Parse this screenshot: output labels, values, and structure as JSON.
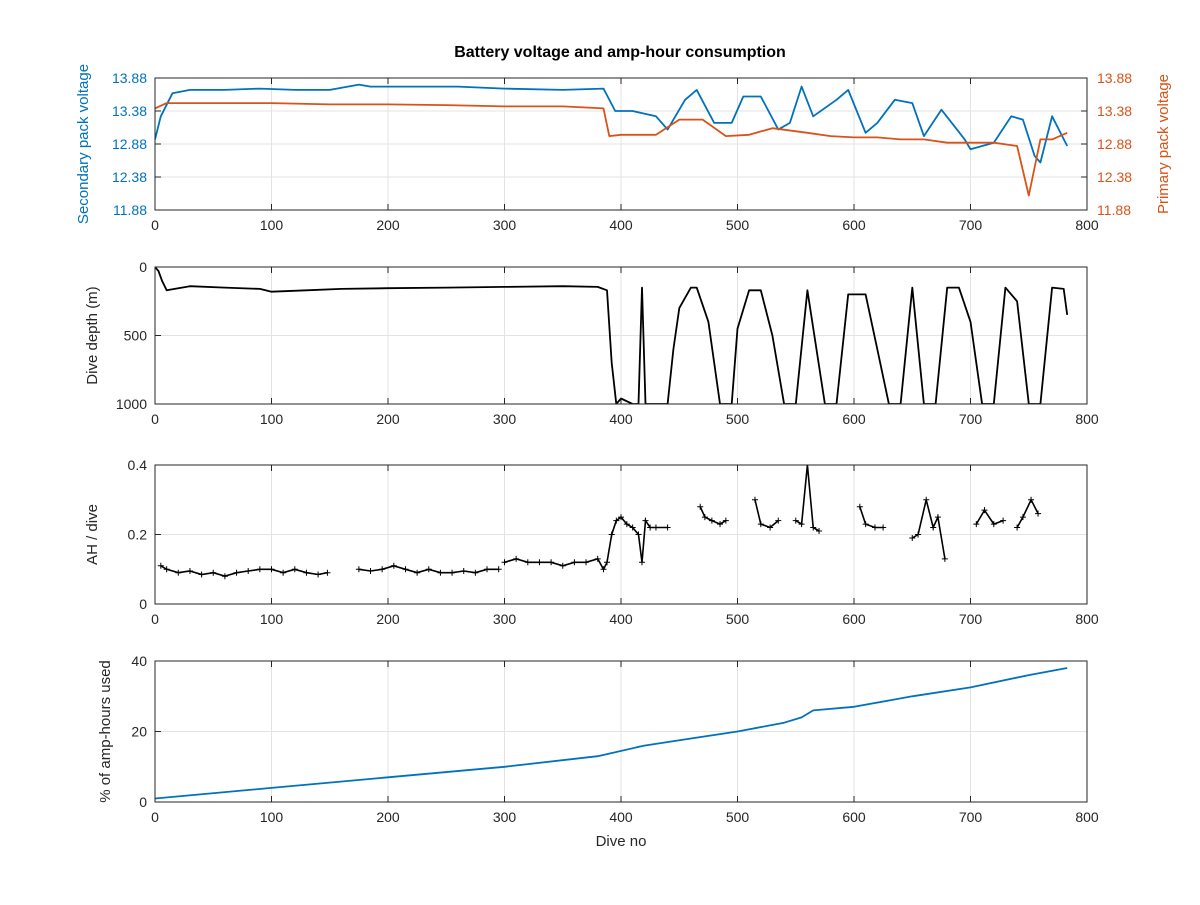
{
  "figure": {
    "title": "Battery voltage and amp-hour consumption",
    "colors": {
      "blue": "#0072bd",
      "orange": "#d95319",
      "black": "#000000",
      "grid": "#e3e3e3",
      "axis": "#262626"
    }
  },
  "chart_data": [
    {
      "type": "line",
      "title": "Battery voltage and amp-hour consumption",
      "xlabel": "",
      "ylabel": "Secondary pack voltage",
      "ylabel_right": "Primary pack voltage",
      "xlim": [
        0,
        800
      ],
      "ylim": [
        11.88,
        13.88
      ],
      "ylim_right": [
        11.88,
        13.88
      ],
      "xticks": [
        0,
        100,
        200,
        300,
        400,
        500,
        600,
        700,
        800
      ],
      "yticks": [
        "11.88",
        "12.38",
        "12.88",
        "13.38",
        "13.88"
      ],
      "yticks_right": [
        "11.88",
        "12.38",
        "12.88",
        "13.38",
        "13.88"
      ],
      "grid": true,
      "series": [
        {
          "axis": "left",
          "color": "#0072bd",
          "x": [
            0,
            5,
            15,
            30,
            60,
            90,
            120,
            150,
            175,
            185,
            220,
            260,
            300,
            350,
            385,
            395,
            410,
            430,
            440,
            455,
            465,
            480,
            495,
            505,
            520,
            535,
            545,
            555,
            565,
            585,
            595,
            610,
            620,
            635,
            650,
            660,
            675,
            695,
            700,
            720,
            735,
            745,
            755,
            760,
            770,
            783
          ],
          "y": [
            12.95,
            13.3,
            13.65,
            13.7,
            13.7,
            13.72,
            13.7,
            13.7,
            13.78,
            13.75,
            13.75,
            13.75,
            13.72,
            13.7,
            13.72,
            13.38,
            13.38,
            13.3,
            13.1,
            13.55,
            13.7,
            13.2,
            13.2,
            13.6,
            13.6,
            13.1,
            13.2,
            13.75,
            13.3,
            13.55,
            13.7,
            13.05,
            13.2,
            13.55,
            13.5,
            13.0,
            13.4,
            12.95,
            12.8,
            12.9,
            13.3,
            13.25,
            12.7,
            12.6,
            13.3,
            12.85
          ]
        },
        {
          "axis": "right",
          "color": "#d95319",
          "x": [
            0,
            10,
            30,
            60,
            100,
            150,
            200,
            250,
            300,
            350,
            385,
            390,
            400,
            430,
            450,
            470,
            490,
            510,
            530,
            560,
            580,
            600,
            620,
            640,
            660,
            680,
            700,
            720,
            740,
            750,
            760,
            770,
            783
          ],
          "y": [
            13.42,
            13.5,
            13.5,
            13.5,
            13.5,
            13.48,
            13.48,
            13.47,
            13.45,
            13.45,
            13.42,
            13.0,
            13.02,
            13.02,
            13.25,
            13.25,
            13.0,
            13.02,
            13.12,
            13.05,
            13.0,
            12.98,
            12.98,
            12.95,
            12.95,
            12.9,
            12.9,
            12.9,
            12.85,
            12.1,
            12.95,
            12.95,
            13.05
          ]
        }
      ]
    },
    {
      "type": "line",
      "xlabel": "",
      "ylabel": "Dive depth (m)",
      "xlim": [
        0,
        800
      ],
      "ylim": [
        0,
        1000
      ],
      "y_reversed": true,
      "xticks": [
        0,
        100,
        200,
        300,
        400,
        500,
        600,
        700,
        800
      ],
      "yticks": [
        "0",
        "500",
        "1000"
      ],
      "grid": true,
      "series": [
        {
          "color": "#000000",
          "x": [
            0,
            3,
            6,
            10,
            30,
            60,
            90,
            100,
            130,
            160,
            200,
            250,
            300,
            350,
            380,
            388,
            392,
            396,
            400,
            410,
            415,
            418,
            421,
            430,
            440,
            445,
            450,
            460,
            465,
            475,
            485,
            495,
            500,
            510,
            520,
            530,
            540,
            550,
            560,
            575,
            585,
            595,
            610,
            620,
            630,
            640,
            650,
            660,
            670,
            680,
            690,
            700,
            710,
            720,
            730,
            740,
            750,
            760,
            770,
            780,
            783
          ],
          "y": [
            0,
            30,
            100,
            170,
            140,
            150,
            160,
            180,
            170,
            160,
            155,
            150,
            145,
            140,
            145,
            170,
            700,
            1000,
            960,
            1000,
            1000,
            150,
            1000,
            1000,
            1000,
            600,
            300,
            150,
            150,
            400,
            1000,
            1000,
            450,
            170,
            170,
            500,
            1000,
            1000,
            170,
            1000,
            1000,
            200,
            200,
            600,
            1000,
            1000,
            150,
            1000,
            1000,
            150,
            150,
            400,
            1000,
            1000,
            150,
            250,
            1000,
            1000,
            150,
            160,
            350
          ]
        }
      ]
    },
    {
      "type": "scatter",
      "xlabel": "",
      "ylabel": "AH / dive",
      "xlim": [
        0,
        800
      ],
      "ylim": [
        0,
        0.4
      ],
      "xticks": [
        0,
        100,
        200,
        300,
        400,
        500,
        600,
        700,
        800
      ],
      "yticks": [
        "0",
        "0.2",
        "0.4"
      ],
      "grid": true,
      "series": [
        {
          "color": "#000000",
          "segments": [
            {
              "x": [
                5,
                10,
                20,
                30,
                40,
                50,
                60,
                70,
                80,
                90,
                100,
                110,
                120,
                130,
                140,
                148
              ],
              "y": [
                0.11,
                0.1,
                0.09,
                0.095,
                0.085,
                0.09,
                0.08,
                0.09,
                0.095,
                0.1,
                0.1,
                0.09,
                0.1,
                0.09,
                0.085,
                0.09
              ]
            },
            {
              "x": [
                175,
                185,
                195,
                205,
                215,
                225,
                235,
                245,
                255,
                265,
                275,
                285,
                295
              ],
              "y": [
                0.1,
                0.095,
                0.1,
                0.11,
                0.1,
                0.09,
                0.1,
                0.09,
                0.09,
                0.095,
                0.09,
                0.1,
                0.1
              ]
            },
            {
              "x": [
                300,
                310,
                320,
                330,
                340,
                350,
                360,
                370,
                380,
                385,
                388,
                392,
                396,
                400,
                405,
                410,
                415,
                418,
                421,
                425,
                430,
                440
              ],
              "y": [
                0.12,
                0.13,
                0.12,
                0.12,
                0.12,
                0.11,
                0.12,
                0.12,
                0.13,
                0.1,
                0.12,
                0.2,
                0.24,
                0.25,
                0.23,
                0.22,
                0.2,
                0.12,
                0.24,
                0.22,
                0.22,
                0.22
              ]
            },
            {
              "x": [
                468,
                472,
                478,
                485,
                490
              ],
              "y": [
                0.28,
                0.25,
                0.24,
                0.23,
                0.24
              ]
            },
            {
              "x": [
                515,
                520,
                528,
                535
              ],
              "y": [
                0.3,
                0.23,
                0.22,
                0.24
              ]
            },
            {
              "x": [
                550,
                555,
                560,
                565,
                570
              ],
              "y": [
                0.24,
                0.23,
                0.4,
                0.22,
                0.21
              ]
            },
            {
              "x": [
                605,
                610,
                618,
                625
              ],
              "y": [
                0.28,
                0.23,
                0.22,
                0.22
              ]
            },
            {
              "x": [
                650,
                655,
                662,
                668,
                672,
                678
              ],
              "y": [
                0.19,
                0.2,
                0.3,
                0.22,
                0.25,
                0.13
              ]
            },
            {
              "x": [
                705,
                712,
                720,
                728
              ],
              "y": [
                0.23,
                0.27,
                0.23,
                0.24
              ]
            },
            {
              "x": [
                740,
                745,
                752,
                758
              ],
              "y": [
                0.22,
                0.25,
                0.3,
                0.26
              ]
            }
          ]
        }
      ]
    },
    {
      "type": "line",
      "xlabel": "Dive no",
      "ylabel": "% of amp-hours used",
      "xlim": [
        0,
        800
      ],
      "ylim": [
        0,
        40
      ],
      "xticks": [
        0,
        100,
        200,
        300,
        400,
        500,
        600,
        700,
        800
      ],
      "yticks": [
        "0",
        "20",
        "40"
      ],
      "grid": true,
      "series": [
        {
          "color": "#0072bd",
          "x": [
            0,
            100,
            200,
            300,
            380,
            420,
            460,
            500,
            540,
            555,
            565,
            600,
            650,
            700,
            750,
            783
          ],
          "y": [
            1,
            4,
            7,
            10,
            13,
            16,
            18,
            20,
            22.5,
            24,
            26,
            27,
            30,
            32.5,
            36,
            38
          ]
        }
      ]
    }
  ]
}
